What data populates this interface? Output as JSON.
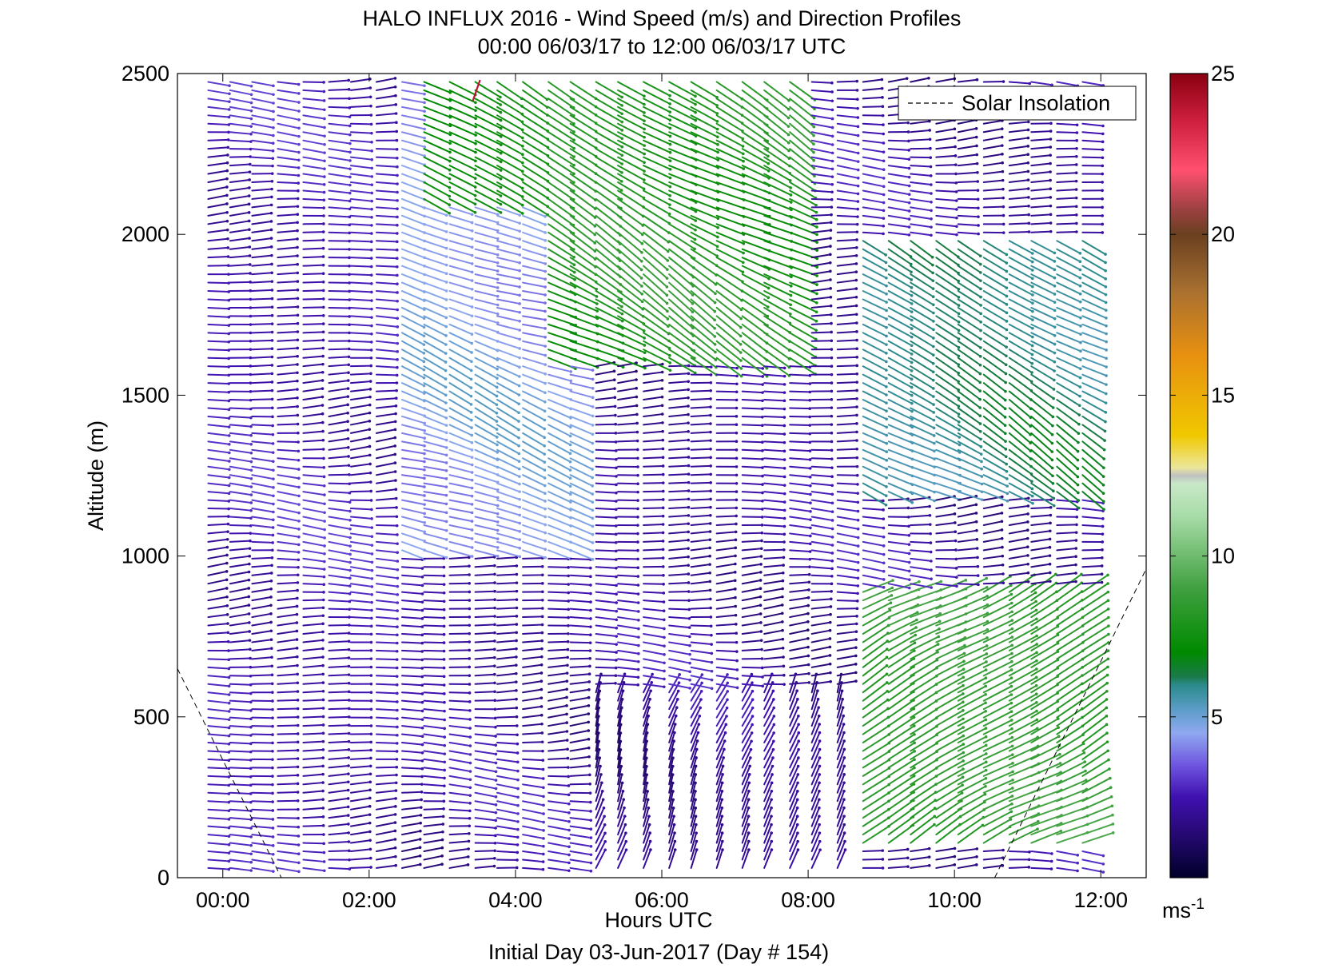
{
  "chart_data": {
    "type": "quiver",
    "title": "HALO INFLUX 2016 - Wind Speed (m/s) and Direction Profiles",
    "subtitle": "00:00 06/03/17 to 12:00 06/03/17  UTC",
    "xlabel": "Hours UTC",
    "footer": "Initial Day 03-Jun-2017 (Day # 154)",
    "ylabel": "Altitude (m)",
    "xlim": [
      -0.62,
      12.62
    ],
    "ylim": [
      0,
      2500
    ],
    "x_ticks": [
      0,
      2,
      4,
      6,
      8,
      10,
      12
    ],
    "x_tick_labels": [
      "00:00",
      "02:00",
      "04:00",
      "06:00",
      "08:00",
      "10:00",
      "12:00"
    ],
    "y_ticks": [
      0,
      500,
      1000,
      1500,
      2000,
      2500
    ],
    "y_tick_labels": [
      "0",
      "500",
      "1000",
      "1500",
      "2000",
      "2500"
    ],
    "colorbar": {
      "ticks": [
        5,
        10,
        15,
        20,
        25
      ],
      "tick_labels": [
        "5",
        "10",
        "15",
        "20",
        "25"
      ],
      "range": [
        0,
        25
      ],
      "unit_label": "ms",
      "unit_exponent": "-1"
    },
    "legend": {
      "entries": [
        "Solar Insolation"
      ],
      "position": "top-right"
    },
    "solar_insolation": {
      "style": "dashed",
      "segments": [
        [
          [
            -0.62,
            650
          ],
          [
            0.8,
            0
          ]
        ],
        [
          [
            10.55,
            0
          ],
          [
            12.62,
            960
          ]
        ]
      ]
    },
    "profile_times_h": [
      -0.2,
      0.1,
      0.4,
      0.75,
      1.1,
      1.45,
      1.75,
      2.1,
      2.45,
      2.75,
      3.1,
      3.45,
      3.75,
      4.1,
      4.45,
      4.75,
      5.1,
      5.4,
      5.75,
      6.1,
      6.4,
      6.75,
      7.1,
      7.4,
      7.75,
      8.05,
      8.4,
      8.75,
      9.1,
      9.4,
      9.75,
      10.05,
      10.4,
      10.75,
      11.05,
      11.4,
      11.75
    ],
    "altitude_gate_spacing_m": 26,
    "wind_regimes": [
      {
        "time_range_h": [
          -0.2,
          2.4
        ],
        "alt_range_m": [
          0,
          2500
        ],
        "speed_ms": 2.5,
        "direction_deg": 270,
        "note": "weak westerly, purple"
      },
      {
        "time_range_h": [
          2.4,
          4.8
        ],
        "alt_range_m": [
          1000,
          2500
        ],
        "speed_ms": 4.5,
        "direction_deg": 290,
        "note": "light blue"
      },
      {
        "time_range_h": [
          2.6,
          4.2
        ],
        "alt_range_m": [
          2100,
          2500
        ],
        "speed_ms": 7.5,
        "direction_deg": 300,
        "note": "green"
      },
      {
        "time_range_h": [
          4.2,
          8.0
        ],
        "alt_range_m": [
          1600,
          2500
        ],
        "speed_ms": 8.0,
        "direction_deg": 300,
        "note": "green aloft"
      },
      {
        "time_range_h": [
          4.8,
          8.5
        ],
        "alt_range_m": [
          0,
          600
        ],
        "speed_ms": 2.0,
        "direction_deg": 200,
        "note": "southerly near surface"
      },
      {
        "time_range_h": [
          8.5,
          11.8
        ],
        "alt_range_m": [
          100,
          900
        ],
        "speed_ms": 8.5,
        "direction_deg": 240,
        "note": "green SW low-level jet"
      },
      {
        "time_range_h": [
          8.5,
          11.8
        ],
        "alt_range_m": [
          1200,
          2000
        ],
        "speed_ms": 6.0,
        "direction_deg": 300,
        "note": "teal"
      }
    ],
    "notable_outliers": [
      {
        "time_h": 3.45,
        "altitude_m": 2450,
        "speed_ms": 24.0
      }
    ]
  }
}
